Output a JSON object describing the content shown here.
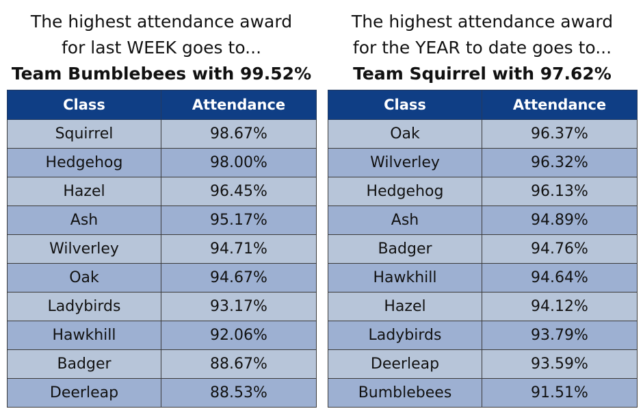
{
  "colors": {
    "header_bg": "#0f3e85",
    "header_text": "#ffffff",
    "row_light": "#b7c5d9",
    "row_dark": "#9db0d2"
  },
  "week": {
    "heading_line1": "The highest attendance award",
    "heading_line2": "for last WEEK goes to...",
    "winner": "Team Bumblebees with 99.52%",
    "columns": [
      "Class",
      "Attendance"
    ],
    "rows": [
      {
        "class": "Squirrel",
        "attendance": "98.67%"
      },
      {
        "class": "Hedgehog",
        "attendance": "98.00%"
      },
      {
        "class": "Hazel",
        "attendance": "96.45%"
      },
      {
        "class": "Ash",
        "attendance": "95.17%"
      },
      {
        "class": "Wilverley",
        "attendance": "94.71%"
      },
      {
        "class": "Oak",
        "attendance": "94.67%"
      },
      {
        "class": "Ladybirds",
        "attendance": "93.17%"
      },
      {
        "class": "Hawkhill",
        "attendance": "92.06%"
      },
      {
        "class": "Badger",
        "attendance": "88.67%"
      },
      {
        "class": "Deerleap",
        "attendance": "88.53%"
      }
    ]
  },
  "year": {
    "heading_line1": "The highest attendance award",
    "heading_line2": "for the YEAR to date goes to...",
    "winner": "Team Squirrel with 97.62%",
    "columns": [
      "Class",
      "Attendance"
    ],
    "rows": [
      {
        "class": "Oak",
        "attendance": "96.37%"
      },
      {
        "class": "Wilverley",
        "attendance": "96.32%"
      },
      {
        "class": "Hedgehog",
        "attendance": "96.13%"
      },
      {
        "class": "Ash",
        "attendance": "94.89%"
      },
      {
        "class": "Badger",
        "attendance": "94.76%"
      },
      {
        "class": "Hawkhill",
        "attendance": "94.64%"
      },
      {
        "class": "Hazel",
        "attendance": "94.12%"
      },
      {
        "class": "Ladybirds",
        "attendance": "93.79%"
      },
      {
        "class": "Deerleap",
        "attendance": "93.59%"
      },
      {
        "class": "Bumblebees",
        "attendance": "91.51%"
      }
    ]
  }
}
